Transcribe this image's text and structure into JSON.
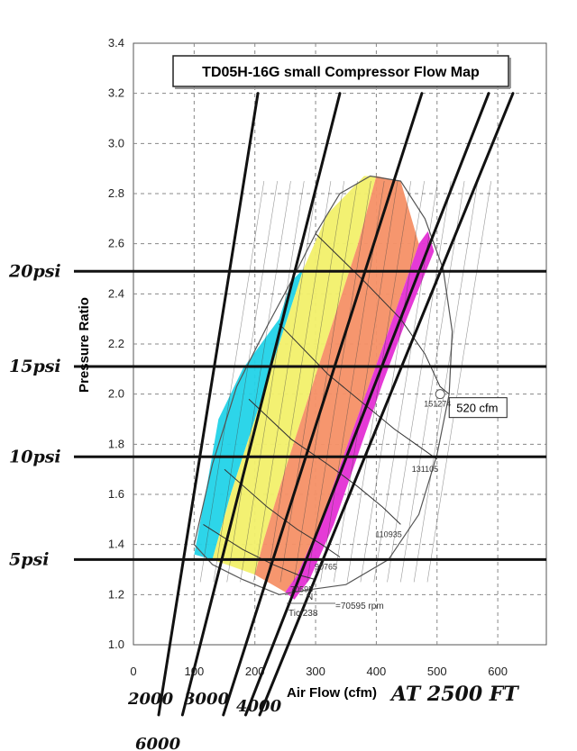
{
  "chart_data": {
    "type": "line",
    "title": "TD05H-16G small Compressor Flow Map",
    "xlabel": "Air Flow (cfm)",
    "xlabel_note": "AT 2500 FT",
    "ylabel": "Pressure Ratio",
    "xlim": [
      0,
      680
    ],
    "ylim": [
      1.0,
      3.4
    ],
    "x_ticks": [
      "0",
      "100",
      "200",
      "300",
      "400",
      "500",
      "600"
    ],
    "x_tick_values": [
      0,
      100,
      200,
      300,
      400,
      500,
      600
    ],
    "y_ticks": [
      "1.0",
      "1.2",
      "1.4",
      "1.6",
      "1.8",
      "2.0",
      "2.2",
      "2.4",
      "2.6",
      "2.8",
      "3.0",
      "3.2",
      "3.4"
    ],
    "y_tick_values": [
      1.0,
      1.2,
      1.4,
      1.6,
      1.8,
      2.0,
      2.2,
      2.4,
      2.6,
      2.8,
      3.0,
      3.2,
      3.4
    ],
    "grid": true,
    "boost_lines": [
      {
        "label": "5psi",
        "pr": 1.34
      },
      {
        "label": "10psi",
        "pr": 1.75
      },
      {
        "label": "15psi",
        "pr": 2.11
      },
      {
        "label": "20psi",
        "pr": 2.49
      }
    ],
    "rpm_lines": [
      {
        "label": "2000",
        "points": [
          [
            60,
            1.0
          ],
          [
            205,
            3.2
          ]
        ]
      },
      {
        "label": "3000",
        "points": [
          [
            110,
            1.0
          ],
          [
            340,
            3.2
          ]
        ]
      },
      {
        "label": "4000",
        "points": [
          [
            185,
            1.0
          ],
          [
            475,
            3.2
          ]
        ]
      },
      {
        "label": "6000",
        "points": [
          [
            230,
            1.0
          ],
          [
            585,
            3.2
          ]
        ]
      },
      {
        "label": "",
        "points": [
          [
            255,
            1.0
          ],
          [
            625,
            3.2
          ]
        ]
      }
    ],
    "compressor_map": {
      "outline": [
        [
          100,
          1.4
        ],
        [
          130,
          1.72
        ],
        [
          170,
          2.03
        ],
        [
          220,
          2.27
        ],
        [
          260,
          2.45
        ],
        [
          300,
          2.64
        ],
        [
          340,
          2.8
        ],
        [
          390,
          2.87
        ],
        [
          440,
          2.85
        ],
        [
          480,
          2.7
        ],
        [
          510,
          2.5
        ],
        [
          525,
          2.25
        ],
        [
          520,
          2.0
        ],
        [
          500,
          1.76
        ],
        [
          470,
          1.52
        ],
        [
          420,
          1.34
        ],
        [
          350,
          1.24
        ],
        [
          290,
          1.22
        ],
        [
          240,
          1.2
        ],
        [
          180,
          1.26
        ],
        [
          130,
          1.32
        ],
        [
          100,
          1.4
        ]
      ],
      "speed_lines": [
        {
          "label": "151274",
          "points": [
            [
              300,
              2.64
            ],
            [
              380,
              2.45
            ],
            [
              440,
              2.3
            ],
            [
              480,
              2.16
            ],
            [
              505,
              2.03
            ],
            [
              520,
              2.0
            ]
          ]
        },
        {
          "label": "131105",
          "points": [
            [
              240,
              2.28
            ],
            [
              320,
              2.08
            ],
            [
              380,
              1.96
            ],
            [
              430,
              1.86
            ],
            [
              465,
              1.8
            ],
            [
              500,
              1.74
            ]
          ]
        },
        {
          "label": "110935",
          "points": [
            [
              190,
              1.98
            ],
            [
              260,
              1.82
            ],
            [
              320,
              1.72
            ],
            [
              370,
              1.63
            ],
            [
              410,
              1.55
            ],
            [
              440,
              1.48
            ]
          ]
        },
        {
          "label": "90765",
          "points": [
            [
              150,
              1.7
            ],
            [
              220,
              1.55
            ],
            [
              270,
              1.46
            ],
            [
              310,
              1.4
            ],
            [
              340,
              1.35
            ]
          ]
        },
        {
          "label": "70595",
          "points": [
            [
              115,
              1.48
            ],
            [
              180,
              1.38
            ],
            [
              230,
              1.32
            ],
            [
              270,
              1.28
            ],
            [
              300,
              1.26
            ]
          ]
        }
      ],
      "speed_annotation": "=70595 rpm",
      "speed_formula_num": "N",
      "speed_formula_den": "Tic/238",
      "callout": {
        "label": "520 cfm",
        "x": 520,
        "pr": 2.0
      }
    },
    "bands": [
      {
        "name": "cyan",
        "color": "#22d3e8",
        "points": [
          [
            100,
            1.36
          ],
          [
            120,
            1.62
          ],
          [
            140,
            1.9
          ],
          [
            180,
            2.1
          ],
          [
            240,
            2.3
          ],
          [
            260,
            2.45
          ],
          [
            280,
            2.5
          ],
          [
            240,
            2.2
          ],
          [
            200,
            1.9
          ],
          [
            160,
            1.6
          ],
          [
            130,
            1.34
          ]
        ]
      },
      {
        "name": "yellow",
        "color": "#f2f06a",
        "points": [
          [
            130,
            1.34
          ],
          [
            160,
            1.6
          ],
          [
            200,
            1.9
          ],
          [
            240,
            2.2
          ],
          [
            280,
            2.5
          ],
          [
            320,
            2.72
          ],
          [
            380,
            2.87
          ],
          [
            400,
            2.87
          ],
          [
            370,
            2.6
          ],
          [
            330,
            2.3
          ],
          [
            290,
            2.0
          ],
          [
            250,
            1.7
          ],
          [
            215,
            1.42
          ],
          [
            200,
            1.28
          ]
        ]
      },
      {
        "name": "orange",
        "color": "#f59066",
        "points": [
          [
            200,
            1.28
          ],
          [
            215,
            1.42
          ],
          [
            250,
            1.7
          ],
          [
            290,
            2.0
          ],
          [
            330,
            2.3
          ],
          [
            370,
            2.6
          ],
          [
            400,
            2.87
          ],
          [
            440,
            2.85
          ],
          [
            470,
            2.6
          ],
          [
            430,
            2.32
          ],
          [
            390,
            2.05
          ],
          [
            350,
            1.78
          ],
          [
            310,
            1.5
          ],
          [
            270,
            1.28
          ],
          [
            250,
            1.21
          ]
        ]
      },
      {
        "name": "magenta",
        "color": "#e42fd4",
        "points": [
          [
            250,
            1.21
          ],
          [
            270,
            1.28
          ],
          [
            310,
            1.5
          ],
          [
            350,
            1.78
          ],
          [
            390,
            2.05
          ],
          [
            430,
            2.32
          ],
          [
            470,
            2.6
          ],
          [
            485,
            2.65
          ],
          [
            495,
            2.57
          ],
          [
            450,
            2.3
          ],
          [
            410,
            2.04
          ],
          [
            370,
            1.76
          ],
          [
            330,
            1.48
          ],
          [
            290,
            1.26
          ],
          [
            265,
            1.18
          ]
        ]
      }
    ],
    "annotations": [
      "20psi",
      "15psi",
      "10psi",
      "5psi",
      "2000",
      "4000",
      "6000",
      "3000",
      "520 cfm",
      "151274",
      "131105",
      "110935",
      "90765"
    ]
  }
}
